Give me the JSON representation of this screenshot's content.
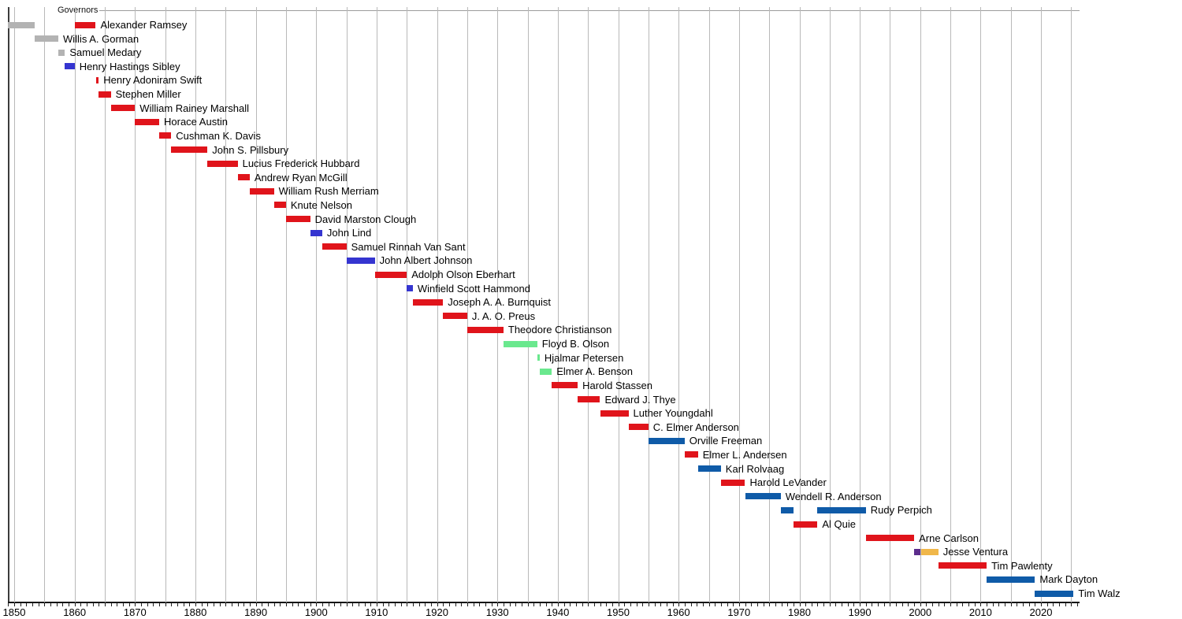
{
  "title": "Governors",
  "chart_data": {
    "type": "gantt",
    "title": "Governors",
    "x_axis": {
      "min": 1849,
      "max": 2026,
      "tick_interval_years": 1,
      "gridline_interval_years": 5,
      "label_interval_years": 10,
      "labels": [
        "1850",
        "1860",
        "1870",
        "1880",
        "1890",
        "1900",
        "1910",
        "1920",
        "1930",
        "1940",
        "1950",
        "1960",
        "1970",
        "1980",
        "1990",
        "2000",
        "2010",
        "2020"
      ]
    },
    "party_colors": {
      "territorial": "#b3b3b3",
      "democratic": "#3535d0",
      "republican": "#e0141b",
      "farmer_labor": "#6ae88e",
      "dfl": "#0f5ba8",
      "reform": "#5c2d8c",
      "independence": "#f0b74a"
    },
    "rows": [
      {
        "name": "Alexander Ramsey",
        "segments": [
          {
            "start": 1849.0,
            "end": 1853.4,
            "party": "territorial"
          },
          {
            "start": 1860.0,
            "end": 1863.5,
            "party": "republican"
          }
        ]
      },
      {
        "name": "Willis A. Gorman",
        "segments": [
          {
            "start": 1853.4,
            "end": 1857.3,
            "party": "territorial"
          }
        ]
      },
      {
        "name": "Samuel Medary",
        "segments": [
          {
            "start": 1857.3,
            "end": 1858.4,
            "party": "territorial"
          }
        ]
      },
      {
        "name": "Henry Hastings Sibley",
        "segments": [
          {
            "start": 1858.4,
            "end": 1860.0,
            "party": "democratic"
          }
        ]
      },
      {
        "name": "Henry Adoniram Swift",
        "segments": [
          {
            "start": 1863.5,
            "end": 1864.0,
            "party": "republican"
          }
        ]
      },
      {
        "name": "Stephen Miller",
        "segments": [
          {
            "start": 1864.0,
            "end": 1866.0,
            "party": "republican"
          }
        ]
      },
      {
        "name": "William Rainey Marshall",
        "segments": [
          {
            "start": 1866.0,
            "end": 1870.0,
            "party": "republican"
          }
        ]
      },
      {
        "name": "Horace Austin",
        "segments": [
          {
            "start": 1870.0,
            "end": 1874.0,
            "party": "republican"
          }
        ]
      },
      {
        "name": "Cushman K. Davis",
        "segments": [
          {
            "start": 1874.0,
            "end": 1876.0,
            "party": "republican"
          }
        ]
      },
      {
        "name": "John S. Pillsbury",
        "segments": [
          {
            "start": 1876.0,
            "end": 1882.0,
            "party": "republican"
          }
        ]
      },
      {
        "name": "Lucius Frederick Hubbard",
        "segments": [
          {
            "start": 1882.0,
            "end": 1887.0,
            "party": "republican"
          }
        ]
      },
      {
        "name": "Andrew Ryan McGill",
        "segments": [
          {
            "start": 1887.0,
            "end": 1889.0,
            "party": "republican"
          }
        ]
      },
      {
        "name": "William Rush Merriam",
        "segments": [
          {
            "start": 1889.0,
            "end": 1893.0,
            "party": "republican"
          }
        ]
      },
      {
        "name": "Knute Nelson",
        "segments": [
          {
            "start": 1893.0,
            "end": 1895.0,
            "party": "republican"
          }
        ]
      },
      {
        "name": "David Marston Clough",
        "segments": [
          {
            "start": 1895.0,
            "end": 1899.0,
            "party": "republican"
          }
        ]
      },
      {
        "name": "John Lind",
        "segments": [
          {
            "start": 1899.0,
            "end": 1901.0,
            "party": "democratic"
          }
        ]
      },
      {
        "name": "Samuel Rinnah Van Sant",
        "segments": [
          {
            "start": 1901.0,
            "end": 1905.0,
            "party": "republican"
          }
        ]
      },
      {
        "name": "John Albert Johnson",
        "segments": [
          {
            "start": 1905.0,
            "end": 1909.7,
            "party": "democratic"
          }
        ]
      },
      {
        "name": "Adolph Olson Eberhart",
        "segments": [
          {
            "start": 1909.7,
            "end": 1915.0,
            "party": "republican"
          }
        ]
      },
      {
        "name": "Winfield Scott Hammond",
        "segments": [
          {
            "start": 1915.0,
            "end": 1916.0,
            "party": "democratic"
          }
        ]
      },
      {
        "name": "Joseph A. A. Burnquist",
        "segments": [
          {
            "start": 1916.0,
            "end": 1921.0,
            "party": "republican"
          }
        ]
      },
      {
        "name": "J. A. O. Preus",
        "segments": [
          {
            "start": 1921.0,
            "end": 1925.0,
            "party": "republican"
          }
        ]
      },
      {
        "name": "Theodore Christianson",
        "segments": [
          {
            "start": 1925.0,
            "end": 1931.0,
            "party": "republican"
          }
        ]
      },
      {
        "name": "Floyd B. Olson",
        "segments": [
          {
            "start": 1931.0,
            "end": 1936.6,
            "party": "farmer_labor"
          }
        ]
      },
      {
        "name": "Hjalmar Petersen",
        "segments": [
          {
            "start": 1936.6,
            "end": 1937.0,
            "party": "farmer_labor"
          }
        ]
      },
      {
        "name": "Elmer A. Benson",
        "segments": [
          {
            "start": 1937.0,
            "end": 1939.0,
            "party": "farmer_labor"
          }
        ]
      },
      {
        "name": "Harold Stassen",
        "segments": [
          {
            "start": 1939.0,
            "end": 1943.3,
            "party": "republican"
          }
        ]
      },
      {
        "name": "Edward J. Thye",
        "segments": [
          {
            "start": 1943.3,
            "end": 1947.0,
            "party": "republican"
          }
        ]
      },
      {
        "name": "Luther Youngdahl",
        "segments": [
          {
            "start": 1947.0,
            "end": 1951.7,
            "party": "republican"
          }
        ]
      },
      {
        "name": "C. Elmer Anderson",
        "segments": [
          {
            "start": 1951.7,
            "end": 1955.0,
            "party": "republican"
          }
        ]
      },
      {
        "name": "Orville Freeman",
        "segments": [
          {
            "start": 1955.0,
            "end": 1961.0,
            "party": "dfl"
          }
        ]
      },
      {
        "name": "Elmer L. Andersen",
        "segments": [
          {
            "start": 1961.0,
            "end": 1963.2,
            "party": "republican"
          }
        ]
      },
      {
        "name": "Karl Rolvaag",
        "segments": [
          {
            "start": 1963.2,
            "end": 1967.0,
            "party": "dfl"
          }
        ]
      },
      {
        "name": "Harold LeVander",
        "segments": [
          {
            "start": 1967.0,
            "end": 1971.0,
            "party": "republican"
          }
        ]
      },
      {
        "name": "Wendell R. Anderson",
        "segments": [
          {
            "start": 1971.0,
            "end": 1976.9,
            "party": "dfl"
          }
        ]
      },
      {
        "name": "Rudy Perpich",
        "segments": [
          {
            "start": 1976.9,
            "end": 1979.0,
            "party": "dfl"
          },
          {
            "start": 1983.0,
            "end": 1991.0,
            "party": "dfl"
          }
        ]
      },
      {
        "name": "Al Quie",
        "segments": [
          {
            "start": 1979.0,
            "end": 1983.0,
            "party": "republican"
          }
        ]
      },
      {
        "name": "Arne Carlson",
        "segments": [
          {
            "start": 1991.0,
            "end": 1999.0,
            "party": "republican"
          }
        ]
      },
      {
        "name": "Jesse Ventura",
        "segments": [
          {
            "start": 1999.0,
            "end": 2000.1,
            "party": "reform"
          },
          {
            "start": 2000.1,
            "end": 2003.0,
            "party": "independence"
          }
        ]
      },
      {
        "name": "Tim Pawlenty",
        "segments": [
          {
            "start": 2003.0,
            "end": 2011.0,
            "party": "republican"
          }
        ]
      },
      {
        "name": "Mark Dayton",
        "segments": [
          {
            "start": 2011.0,
            "end": 2019.0,
            "party": "dfl"
          }
        ]
      },
      {
        "name": "Tim Walz",
        "segments": [
          {
            "start": 2019.0,
            "end": 2025.4,
            "party": "dfl"
          }
        ]
      }
    ]
  }
}
